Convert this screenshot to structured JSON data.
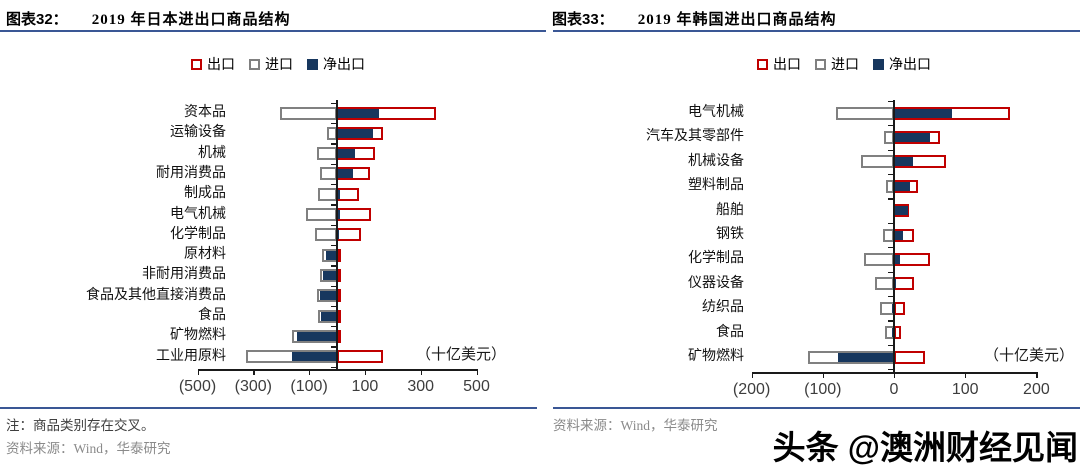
{
  "watermark": "头条 @澳洲财经见闻",
  "colors": {
    "export_border": "#c00000",
    "import_border": "#808080",
    "net_fill": "#17375e",
    "rule_blue": "#3a5795"
  },
  "chart_data": [
    {
      "type": "bar",
      "orientation": "horizontal",
      "header_label": "图表32：",
      "title": "2019 年日本进出口商品结构",
      "unit": "（十亿美元）",
      "legend": [
        {
          "label": "出口",
          "style": "export"
        },
        {
          "label": "进口",
          "style": "import"
        },
        {
          "label": "净出口",
          "style": "net"
        }
      ],
      "xlim": [
        -500,
        500
      ],
      "ticks": [
        {
          "value": -500,
          "label": "(500)"
        },
        {
          "value": -300,
          "label": "(300)"
        },
        {
          "value": -100,
          "label": "(100)"
        },
        {
          "value": 100,
          "label": "100"
        },
        {
          "value": 300,
          "label": "300"
        },
        {
          "value": 500,
          "label": "500"
        }
      ],
      "categories": [
        "资本品",
        "运输设备",
        "机械",
        "耐用消费品",
        "制成品",
        "电气机械",
        "化学制品",
        "原材料",
        "非耐用消费品",
        "食品及其他直接消费品",
        "食品",
        "矿物燃料",
        "工业用原料"
      ],
      "series": [
        {
          "name": "出口",
          "style": "export",
          "values": [
            355,
            164,
            135,
            120,
            78,
            122,
            86,
            15,
            13,
            12,
            10,
            15,
            165
          ]
        },
        {
          "name": "进口",
          "style": "import",
          "values": [
            -205,
            -36,
            -70,
            -62,
            -68,
            -112,
            -78,
            -53,
            -62,
            -72,
            -68,
            -160,
            -325
          ]
        },
        {
          "name": "净出口",
          "style": "net",
          "values": [
            150,
            128,
            65,
            58,
            10,
            10,
            8,
            -38,
            -49,
            -60,
            -58,
            -145,
            -160
          ]
        }
      ],
      "note": "注：商品类别存在交叉。",
      "source": "资料来源：Wind，华泰研究"
    },
    {
      "type": "bar",
      "orientation": "horizontal",
      "header_label": "图表33：",
      "title": "2019 年韩国进出口商品结构",
      "unit": "（十亿美元）",
      "legend": [
        {
          "label": "出口",
          "style": "export"
        },
        {
          "label": "进口",
          "style": "import"
        },
        {
          "label": "净出口",
          "style": "net"
        }
      ],
      "xlim": [
        -200,
        200
      ],
      "ticks": [
        {
          "value": -200,
          "label": "(200)"
        },
        {
          "value": -100,
          "label": "(100)"
        },
        {
          "value": 0,
          "label": "0"
        },
        {
          "value": 100,
          "label": "100"
        },
        {
          "value": 200,
          "label": "200"
        }
      ],
      "categories": [
        "电气机械",
        "汽车及其零部件",
        "机械设备",
        "塑料制品",
        "船舶",
        "钢铁",
        "化学制品",
        "仪器设备",
        "纺织品",
        "食品",
        "矿物燃料"
      ],
      "series": [
        {
          "name": "出口",
          "style": "export",
          "values": [
            163,
            65,
            73,
            34,
            21,
            28,
            51,
            28,
            16,
            10,
            43
          ]
        },
        {
          "name": "进口",
          "style": "import",
          "values": [
            -82,
            -14,
            -46,
            -11,
            -1,
            -16,
            -42,
            -26,
            -19,
            -13,
            -121
          ]
        },
        {
          "name": "净出口",
          "style": "net",
          "values": [
            81,
            51,
            27,
            23,
            20,
            12,
            9,
            2,
            -3,
            -3,
            -78
          ]
        }
      ],
      "note": "",
      "source": "资料来源：Wind，华泰研究"
    }
  ]
}
